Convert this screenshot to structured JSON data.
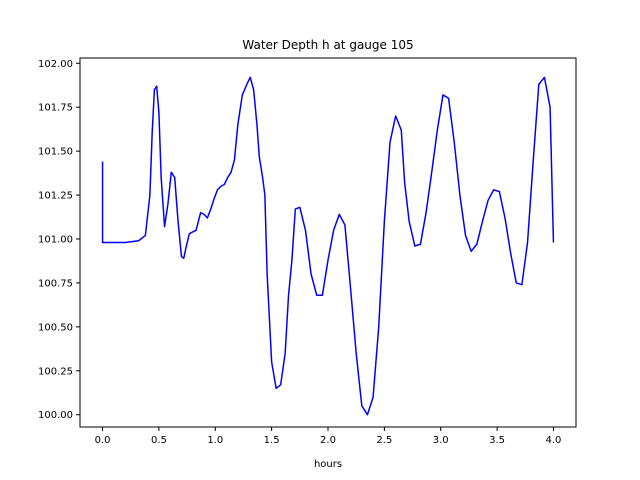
{
  "chart_data": {
    "type": "line",
    "title": "Water Depth h at gauge 105",
    "xlabel": "hours",
    "ylabel": "",
    "xlim": [
      -0.2,
      4.2
    ],
    "ylim": [
      99.93,
      102.03
    ],
    "xticks": [
      0.0,
      0.5,
      1.0,
      1.5,
      2.0,
      2.5,
      3.0,
      3.5,
      4.0
    ],
    "xtick_labels": [
      "0.0",
      "0.5",
      "1.0",
      "1.5",
      "2.0",
      "2.5",
      "3.0",
      "3.5",
      "4.0"
    ],
    "yticks": [
      100.0,
      100.25,
      100.5,
      100.75,
      101.0,
      101.25,
      101.5,
      101.75,
      102.0
    ],
    "ytick_labels": [
      "100.00",
      "100.25",
      "100.50",
      "100.75",
      "101.00",
      "101.25",
      "101.50",
      "101.75",
      "102.00"
    ],
    "grid": false,
    "series": [
      {
        "color": "#0000ff",
        "x": [
          0.0,
          0.0,
          0.1,
          0.2,
          0.32,
          0.38,
          0.42,
          0.44,
          0.46,
          0.48,
          0.5,
          0.52,
          0.55,
          0.58,
          0.61,
          0.64,
          0.67,
          0.7,
          0.72,
          0.74,
          0.77,
          0.8,
          0.83,
          0.87,
          0.9,
          0.93,
          0.96,
          0.99,
          1.02,
          1.05,
          1.08,
          1.11,
          1.14,
          1.17,
          1.2,
          1.24,
          1.28,
          1.31,
          1.34,
          1.37,
          1.39,
          1.42,
          1.44,
          1.46,
          1.5,
          1.54,
          1.58,
          1.62,
          1.65,
          1.68,
          1.71,
          1.75,
          1.8,
          1.85,
          1.9,
          1.95,
          2.0,
          2.05,
          2.1,
          2.15,
          2.2,
          2.25,
          2.3,
          2.35,
          2.4,
          2.45,
          2.5,
          2.55,
          2.6,
          2.65,
          2.68,
          2.72,
          2.77,
          2.82,
          2.87,
          2.92,
          2.97,
          3.02,
          3.07,
          3.12,
          3.17,
          3.22,
          3.27,
          3.32,
          3.37,
          3.42,
          3.47,
          3.52,
          3.57,
          3.62,
          3.67,
          3.72,
          3.77,
          3.82,
          3.87,
          3.92,
          3.97,
          4.0
        ],
        "y": [
          101.44,
          100.98,
          100.98,
          100.98,
          100.99,
          101.02,
          101.25,
          101.6,
          101.85,
          101.87,
          101.72,
          101.35,
          101.07,
          101.2,
          101.38,
          101.35,
          101.1,
          100.9,
          100.89,
          100.95,
          101.03,
          101.04,
          101.05,
          101.15,
          101.14,
          101.12,
          101.17,
          101.23,
          101.28,
          101.3,
          101.31,
          101.35,
          101.38,
          101.45,
          101.65,
          101.82,
          101.88,
          101.92,
          101.85,
          101.65,
          101.47,
          101.35,
          101.25,
          100.8,
          100.3,
          100.15,
          100.17,
          100.35,
          100.68,
          100.88,
          101.17,
          101.18,
          101.05,
          100.8,
          100.68,
          100.68,
          100.88,
          101.05,
          101.14,
          101.08,
          100.72,
          100.35,
          100.05,
          100.0,
          100.1,
          100.5,
          101.1,
          101.55,
          101.7,
          101.62,
          101.32,
          101.1,
          100.96,
          100.97,
          101.15,
          101.38,
          101.62,
          101.82,
          101.8,
          101.55,
          101.25,
          101.02,
          100.93,
          100.97,
          101.1,
          101.22,
          101.28,
          101.27,
          101.12,
          100.92,
          100.75,
          100.74,
          100.98,
          101.44,
          101.88,
          101.92,
          101.75,
          100.98
        ]
      }
    ]
  }
}
